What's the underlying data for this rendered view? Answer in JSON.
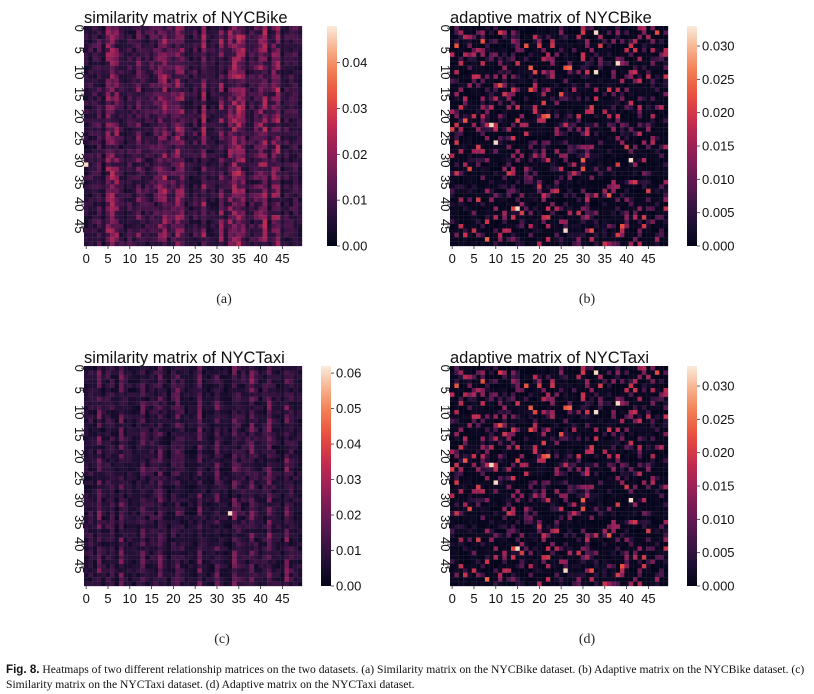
{
  "figure": {
    "caption_label": "Fig. 8.",
    "caption_text": "Heatmaps of two different relationship matrices on the two datasets. (a) Similarity matrix on the NYCBike dataset. (b) Adaptive matrix on the NYCBike dataset. (c) Similarity matrix on the NYCTaxi dataset. (d) Adaptive matrix on the NYCTaxi dataset.",
    "colormap": "rocket",
    "colors": {
      "low": "#03051a",
      "mid": "#c52b4f",
      "high": "#faebdd"
    }
  },
  "chart_data": [
    {
      "type": "heatmap",
      "sublabel": "(a)",
      "title": "similarity matrix of NYCBike",
      "rows": 50,
      "cols": 50,
      "xticks": [
        0,
        5,
        10,
        15,
        20,
        25,
        30,
        35,
        40,
        45
      ],
      "yticks": [
        0,
        5,
        10,
        15,
        20,
        25,
        30,
        35,
        40,
        45
      ],
      "colorbar": {
        "min": 0.0,
        "max": 0.048,
        "ticks": [
          0.0,
          0.01,
          0.02,
          0.03,
          0.04
        ],
        "tick_labels": [
          "0.00",
          "0.01",
          "0.02",
          "0.03",
          "0.04"
        ]
      },
      "pattern": "column-banded",
      "bright_columns": [
        5,
        6,
        7,
        12,
        17,
        18,
        21,
        22,
        27,
        31,
        33,
        34,
        35,
        36,
        40,
        41,
        43,
        44
      ],
      "hot_cells": [
        [
          31,
          0
        ]
      ]
    },
    {
      "type": "heatmap",
      "sublabel": "(b)",
      "title": "adaptive matrix of NYCBike",
      "rows": 50,
      "cols": 50,
      "xticks": [
        0,
        5,
        10,
        15,
        20,
        25,
        30,
        35,
        40,
        45
      ],
      "yticks": [
        0,
        5,
        10,
        15,
        20,
        25,
        30,
        35,
        40,
        45
      ],
      "colorbar": {
        "min": 0.0,
        "max": 0.033,
        "ticks": [
          0.0,
          0.005,
          0.01,
          0.015,
          0.02,
          0.025,
          0.03
        ],
        "tick_labels": [
          "0.000",
          "0.005",
          "0.010",
          "0.015",
          "0.020",
          "0.025",
          "0.030"
        ]
      },
      "pattern": "sparse-random",
      "hot_cells": [
        [
          26,
          10
        ],
        [
          30,
          41
        ],
        [
          1,
          33
        ],
        [
          41,
          15
        ],
        [
          10,
          33
        ],
        [
          22,
          9
        ],
        [
          8,
          38
        ],
        [
          46,
          26
        ]
      ]
    },
    {
      "type": "heatmap",
      "sublabel": "(c)",
      "title": "similarity matrix of NYCTaxi",
      "rows": 50,
      "cols": 50,
      "xticks": [
        0,
        5,
        10,
        15,
        20,
        25,
        30,
        35,
        40,
        45
      ],
      "yticks": [
        0,
        5,
        10,
        15,
        20,
        25,
        30,
        35,
        40,
        45
      ],
      "colorbar": {
        "min": 0.0,
        "max": 0.062,
        "ticks": [
          0.0,
          0.01,
          0.02,
          0.03,
          0.04,
          0.05,
          0.06
        ],
        "tick_labels": [
          "0.00",
          "0.01",
          "0.02",
          "0.03",
          "0.04",
          "0.05",
          "0.06"
        ]
      },
      "pattern": "column-banded-dim",
      "bright_columns": [
        3,
        8,
        13,
        17,
        21,
        26,
        30,
        34,
        38,
        42,
        46
      ],
      "hot_cells": [
        [
          33,
          33
        ]
      ]
    },
    {
      "type": "heatmap",
      "sublabel": "(d)",
      "title": "adaptive matrix of NYCTaxi",
      "rows": 50,
      "cols": 50,
      "xticks": [
        0,
        5,
        10,
        15,
        20,
        25,
        30,
        35,
        40,
        45
      ],
      "yticks": [
        0,
        5,
        10,
        15,
        20,
        25,
        30,
        35,
        40,
        45
      ],
      "colorbar": {
        "min": 0.0,
        "max": 0.033,
        "ticks": [
          0.0,
          0.005,
          0.01,
          0.015,
          0.02,
          0.025,
          0.03
        ],
        "tick_labels": [
          "0.000",
          "0.005",
          "0.010",
          "0.015",
          "0.020",
          "0.025",
          "0.030"
        ]
      },
      "pattern": "sparse-random",
      "hot_cells": [
        [
          26,
          10
        ],
        [
          30,
          41
        ],
        [
          1,
          33
        ],
        [
          41,
          15
        ],
        [
          10,
          33
        ],
        [
          22,
          9
        ],
        [
          8,
          38
        ],
        [
          46,
          26
        ]
      ]
    }
  ]
}
